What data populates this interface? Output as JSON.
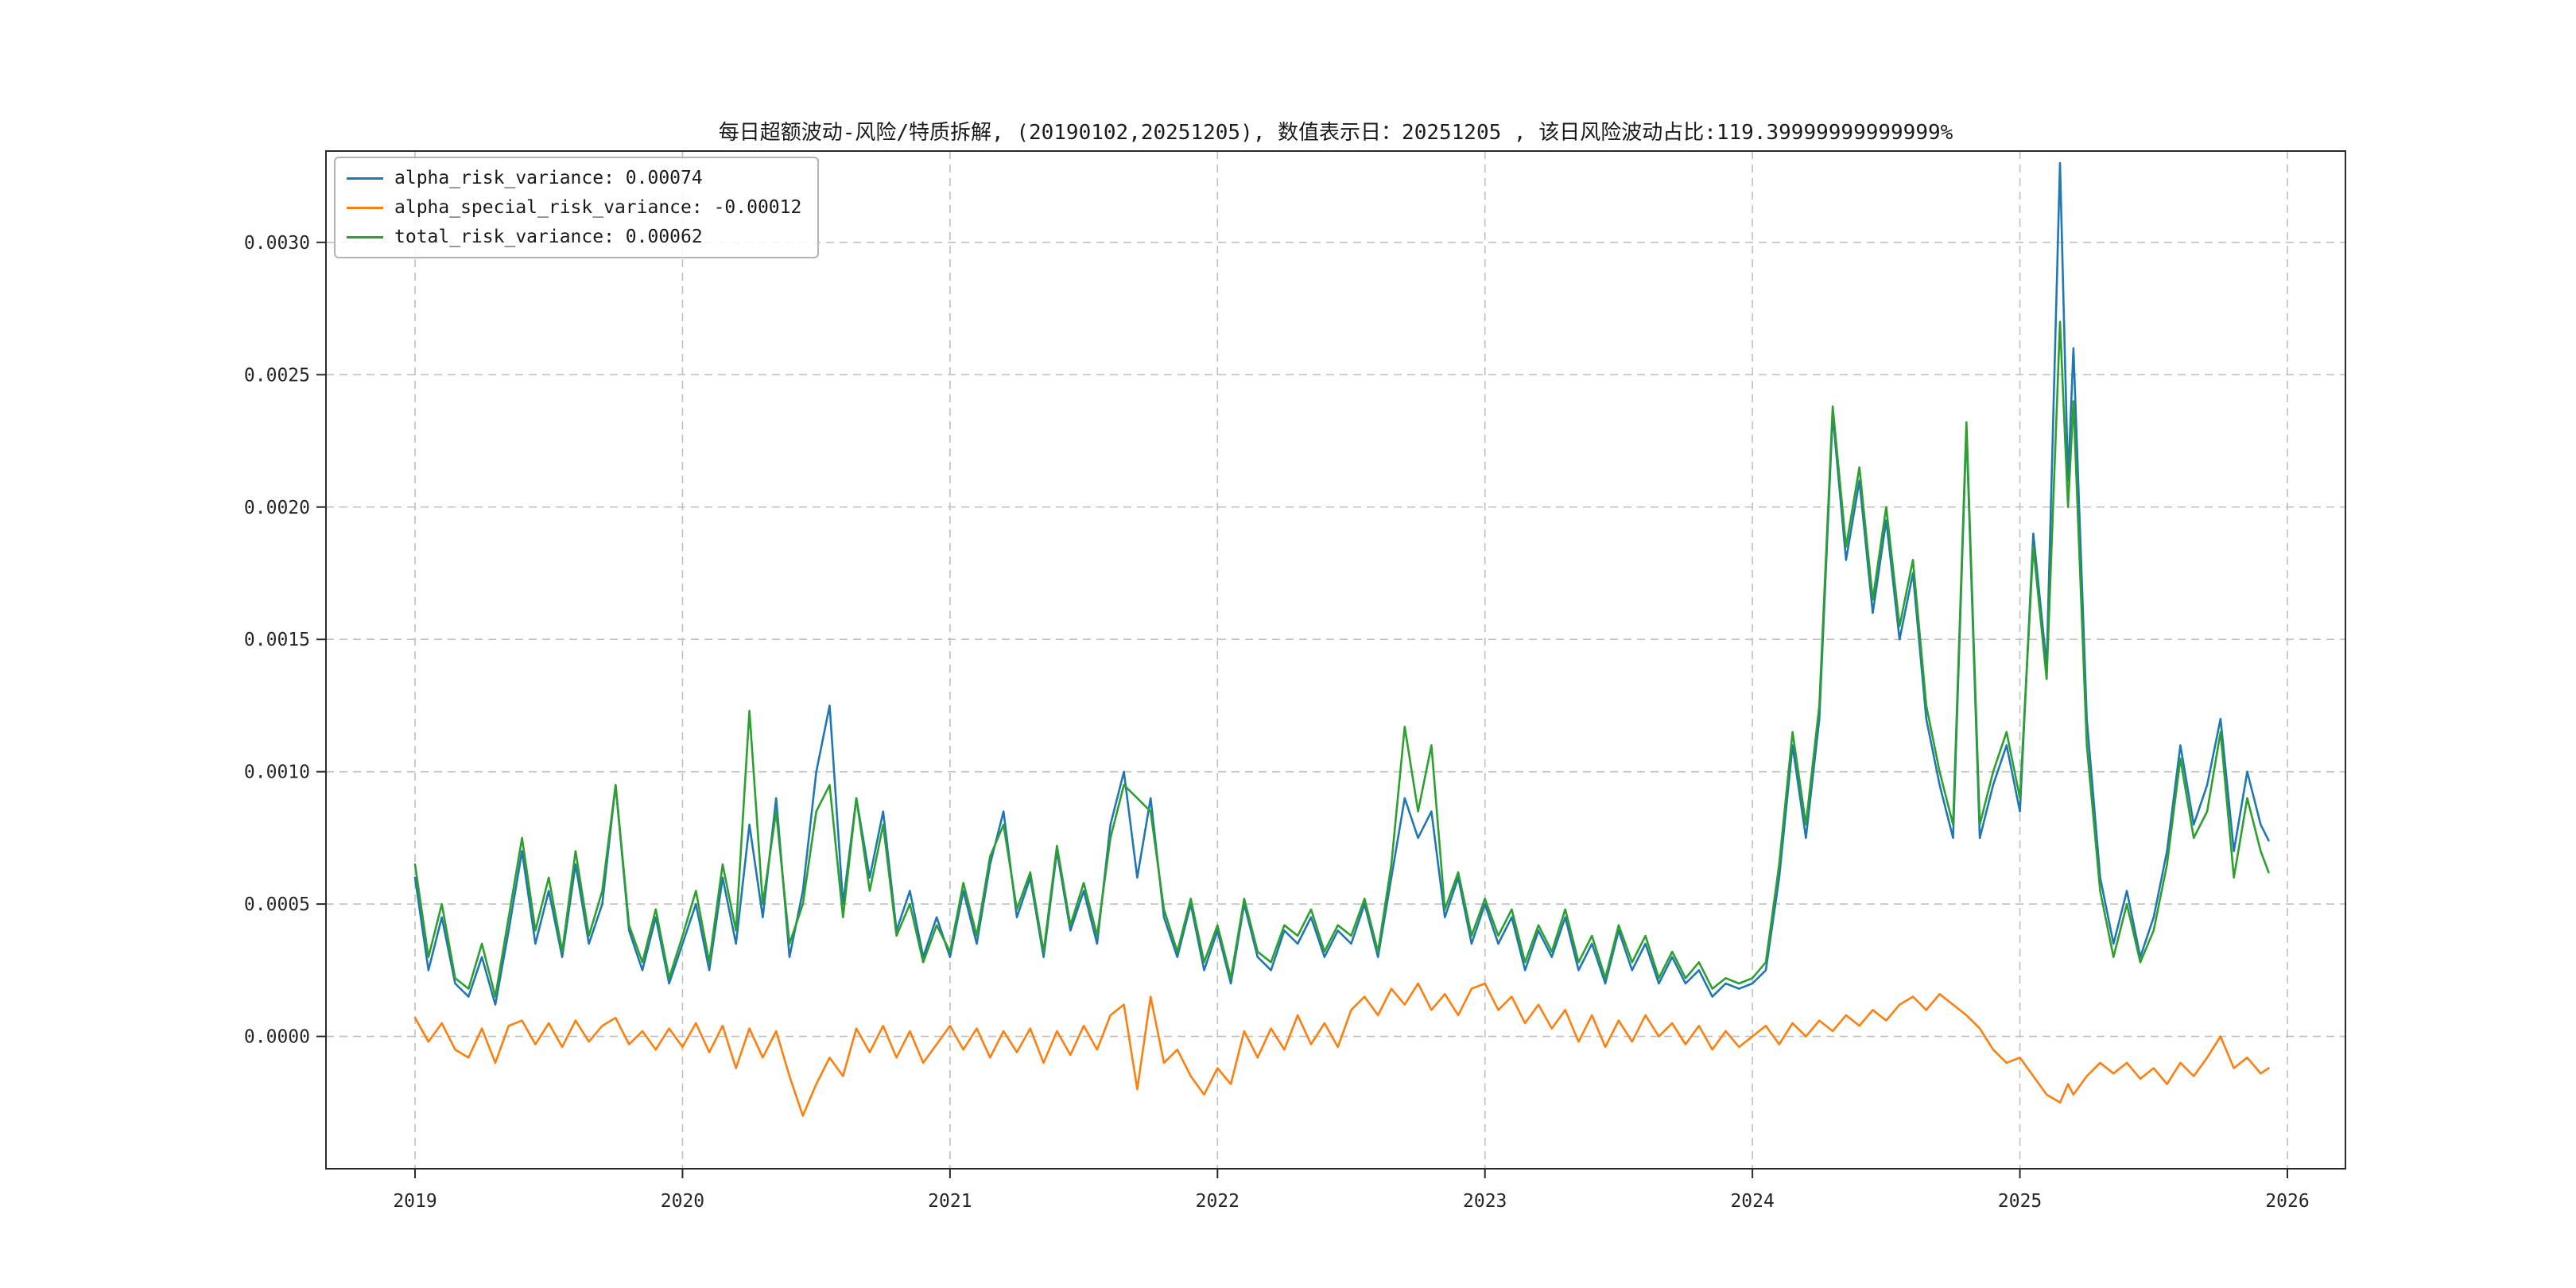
{
  "page": {
    "background": "#ffffff"
  },
  "chart_data": {
    "type": "line",
    "title": "每日超额波动-风险/特质拆解, (20190102,20251205),  数值表示日：20251205 , 该日风险波动占比:119.39999999999999%",
    "xlabel": "",
    "ylabel": "",
    "grid": true,
    "grid_style": "dashed",
    "legend_position": "upper-left",
    "x_range": [
      2018.667,
      2026.217
    ],
    "y_range": [
      -0.0005,
      0.003345
    ],
    "x_ticks": [
      2019,
      2020,
      2021,
      2022,
      2023,
      2024,
      2025,
      2026
    ],
    "y_ticks": [
      0.0,
      0.0005,
      0.001,
      0.0015,
      0.002,
      0.0025,
      0.003
    ],
    "y_tick_labels": [
      "0.0000",
      "0.0005",
      "0.0010",
      "0.0015",
      "0.0020",
      "0.0025",
      "0.0030"
    ],
    "value_date": "20251205",
    "date_range": [
      "20190102",
      "20251205"
    ],
    "risk_ratio_pct": "119.39999999999999%",
    "x": [
      2019.0,
      2019.05,
      2019.1,
      2019.15,
      2019.2,
      2019.25,
      2019.3,
      2019.35,
      2019.4,
      2019.45,
      2019.5,
      2019.55,
      2019.6,
      2019.65,
      2019.7,
      2019.75,
      2019.8,
      2019.85,
      2019.9,
      2019.95,
      2020.0,
      2020.05,
      2020.1,
      2020.15,
      2020.2,
      2020.25,
      2020.3,
      2020.35,
      2020.4,
      2020.45,
      2020.5,
      2020.55,
      2020.6,
      2020.65,
      2020.7,
      2020.75,
      2020.8,
      2020.85,
      2020.9,
      2020.95,
      2021.0,
      2021.05,
      2021.1,
      2021.15,
      2021.2,
      2021.25,
      2021.3,
      2021.35,
      2021.4,
      2021.45,
      2021.5,
      2021.55,
      2021.6,
      2021.65,
      2021.7,
      2021.75,
      2021.8,
      2021.85,
      2021.9,
      2021.95,
      2022.0,
      2022.05,
      2022.1,
      2022.15,
      2022.2,
      2022.25,
      2022.3,
      2022.35,
      2022.4,
      2022.45,
      2022.5,
      2022.55,
      2022.6,
      2022.65,
      2022.7,
      2022.75,
      2022.8,
      2022.85,
      2022.9,
      2022.95,
      2023.0,
      2023.05,
      2023.1,
      2023.15,
      2023.2,
      2023.25,
      2023.3,
      2023.35,
      2023.4,
      2023.45,
      2023.5,
      2023.55,
      2023.6,
      2023.65,
      2023.7,
      2023.75,
      2023.8,
      2023.85,
      2023.9,
      2023.95,
      2024.0,
      2024.05,
      2024.1,
      2024.15,
      2024.2,
      2024.25,
      2024.3,
      2024.35,
      2024.4,
      2024.45,
      2024.5,
      2024.55,
      2024.6,
      2024.65,
      2024.7,
      2024.75,
      2024.8,
      2024.85,
      2024.9,
      2024.95,
      2025.0,
      2025.05,
      2025.1,
      2025.15,
      2025.18,
      2025.2,
      2025.25,
      2025.3,
      2025.35,
      2025.4,
      2025.45,
      2025.5,
      2025.55,
      2025.6,
      2025.65,
      2025.7,
      2025.75,
      2025.8,
      2025.85,
      2025.9,
      2025.93
    ],
    "series": [
      {
        "name": "alpha_risk_variance",
        "label": "alpha_risk_variance: 0.00074",
        "color": "#1f77b4",
        "last_value": 0.00074,
        "values": [
          0.0006,
          0.00025,
          0.00045,
          0.0002,
          0.00015,
          0.0003,
          0.00012,
          0.0004,
          0.0007,
          0.00035,
          0.00055,
          0.0003,
          0.00065,
          0.00035,
          0.0005,
          0.00095,
          0.0004,
          0.00025,
          0.00045,
          0.0002,
          0.00035,
          0.0005,
          0.00025,
          0.0006,
          0.00035,
          0.0008,
          0.00045,
          0.0009,
          0.0003,
          0.00055,
          0.001,
          0.00125,
          0.0005,
          0.0009,
          0.0006,
          0.00085,
          0.0004,
          0.00055,
          0.0003,
          0.00045,
          0.0003,
          0.00055,
          0.00035,
          0.00065,
          0.00085,
          0.00045,
          0.0006,
          0.0003,
          0.0007,
          0.0004,
          0.00055,
          0.00035,
          0.0008,
          0.001,
          0.0006,
          0.0009,
          0.00045,
          0.0003,
          0.0005,
          0.00025,
          0.0004,
          0.0002,
          0.0005,
          0.0003,
          0.00025,
          0.0004,
          0.00035,
          0.00045,
          0.0003,
          0.0004,
          0.00035,
          0.0005,
          0.0003,
          0.0006,
          0.0009,
          0.00075,
          0.00085,
          0.00045,
          0.0006,
          0.00035,
          0.0005,
          0.00035,
          0.00045,
          0.00025,
          0.0004,
          0.0003,
          0.00045,
          0.00025,
          0.00035,
          0.0002,
          0.0004,
          0.00025,
          0.00035,
          0.0002,
          0.0003,
          0.0002,
          0.00025,
          0.00015,
          0.0002,
          0.00018,
          0.0002,
          0.00025,
          0.0006,
          0.0011,
          0.00075,
          0.0012,
          0.00235,
          0.0018,
          0.0021,
          0.0016,
          0.00195,
          0.0015,
          0.00175,
          0.0012,
          0.00095,
          0.00075,
          0.0023,
          0.00075,
          0.00095,
          0.0011,
          0.00085,
          0.0019,
          0.0014,
          0.0033,
          0.0021,
          0.0026,
          0.0012,
          0.0006,
          0.00035,
          0.00055,
          0.0003,
          0.00045,
          0.0007,
          0.0011,
          0.0008,
          0.00095,
          0.0012,
          0.0007,
          0.001,
          0.0008,
          0.00074
        ]
      },
      {
        "name": "alpha_special_risk_variance",
        "label": "alpha_special_risk_variance: -0.00012",
        "color": "#ff7f0e",
        "last_value": -0.00012,
        "values": [
          7e-05,
          -2e-05,
          5e-05,
          -5e-05,
          -8e-05,
          3e-05,
          -0.0001,
          4e-05,
          6e-05,
          -3e-05,
          5e-05,
          -4e-05,
          6e-05,
          -2e-05,
          4e-05,
          7e-05,
          -3e-05,
          2e-05,
          -5e-05,
          3e-05,
          -4e-05,
          5e-05,
          -6e-05,
          4e-05,
          -0.00012,
          3e-05,
          -8e-05,
          2e-05,
          -0.00015,
          -0.0003,
          -0.00018,
          -8e-05,
          -0.00015,
          3e-05,
          -6e-05,
          4e-05,
          -8e-05,
          2e-05,
          -0.0001,
          -3e-05,
          4e-05,
          -5e-05,
          3e-05,
          -8e-05,
          2e-05,
          -6e-05,
          3e-05,
          -0.0001,
          2e-05,
          -7e-05,
          4e-05,
          -5e-05,
          8e-05,
          0.00012,
          -0.0002,
          0.00015,
          -0.0001,
          -5e-05,
          -0.00015,
          -0.00022,
          -0.00012,
          -0.00018,
          2e-05,
          -8e-05,
          3e-05,
          -5e-05,
          8e-05,
          -3e-05,
          5e-05,
          -4e-05,
          0.0001,
          0.00015,
          8e-05,
          0.00018,
          0.00012,
          0.0002,
          0.0001,
          0.00016,
          8e-05,
          0.00018,
          0.0002,
          0.0001,
          0.00015,
          5e-05,
          0.00012,
          3e-05,
          0.0001,
          -2e-05,
          8e-05,
          -4e-05,
          6e-05,
          -2e-05,
          8e-05,
          0.0,
          5e-05,
          -3e-05,
          4e-05,
          -5e-05,
          2e-05,
          -4e-05,
          0.0,
          4e-05,
          -3e-05,
          5e-05,
          0.0,
          6e-05,
          2e-05,
          8e-05,
          4e-05,
          0.0001,
          6e-05,
          0.00012,
          0.00015,
          0.0001,
          0.00016,
          0.00012,
          8e-05,
          3e-05,
          -5e-05,
          -0.0001,
          -8e-05,
          -0.00015,
          -0.00022,
          -0.00025,
          -0.00018,
          -0.00022,
          -0.00015,
          -0.0001,
          -0.00014,
          -0.0001,
          -0.00016,
          -0.00012,
          -0.00018,
          -0.0001,
          -0.00015,
          -8e-05,
          0.0,
          -0.00012,
          -8e-05,
          -0.00014,
          -0.00012
        ]
      },
      {
        "name": "total_risk_variance",
        "label": "total_risk_variance: 0.00062",
        "color": "#2ca02c",
        "last_value": 0.00062,
        "values": [
          0.00065,
          0.0003,
          0.0005,
          0.00022,
          0.00018,
          0.00035,
          0.00015,
          0.00045,
          0.00075,
          0.0004,
          0.0006,
          0.00032,
          0.0007,
          0.00038,
          0.00055,
          0.00095,
          0.00042,
          0.00028,
          0.00048,
          0.00022,
          0.00038,
          0.00055,
          0.00028,
          0.00065,
          0.0004,
          0.00123,
          0.0005,
          0.00085,
          0.00035,
          0.0005,
          0.00085,
          0.00095,
          0.00045,
          0.0009,
          0.00055,
          0.0008,
          0.00038,
          0.0005,
          0.00028,
          0.00042,
          0.00032,
          0.00058,
          0.00038,
          0.00068,
          0.0008,
          0.00048,
          0.00062,
          0.00032,
          0.00072,
          0.00042,
          0.00058,
          0.00038,
          0.00075,
          0.00095,
          0.0009,
          0.00085,
          0.00048,
          0.00032,
          0.00052,
          0.00028,
          0.00042,
          0.00022,
          0.00052,
          0.00032,
          0.00028,
          0.00042,
          0.00038,
          0.00048,
          0.00032,
          0.00042,
          0.00038,
          0.00052,
          0.00032,
          0.00065,
          0.00117,
          0.00085,
          0.0011,
          0.00048,
          0.00062,
          0.00038,
          0.00052,
          0.00038,
          0.00048,
          0.00028,
          0.00042,
          0.00032,
          0.00048,
          0.00028,
          0.00038,
          0.00022,
          0.00042,
          0.00028,
          0.00038,
          0.00022,
          0.00032,
          0.00022,
          0.00028,
          0.00018,
          0.00022,
          0.0002,
          0.00022,
          0.00028,
          0.00065,
          0.00115,
          0.0008,
          0.00125,
          0.00238,
          0.00185,
          0.00215,
          0.00165,
          0.002,
          0.00155,
          0.0018,
          0.00125,
          0.001,
          0.0008,
          0.00232,
          0.0008,
          0.001,
          0.00115,
          0.0009,
          0.00185,
          0.00135,
          0.0027,
          0.002,
          0.0024,
          0.0011,
          0.00055,
          0.0003,
          0.0005,
          0.00028,
          0.0004,
          0.00065,
          0.00105,
          0.00075,
          0.00085,
          0.00115,
          0.0006,
          0.0009,
          0.0007,
          0.00062
        ]
      }
    ]
  }
}
